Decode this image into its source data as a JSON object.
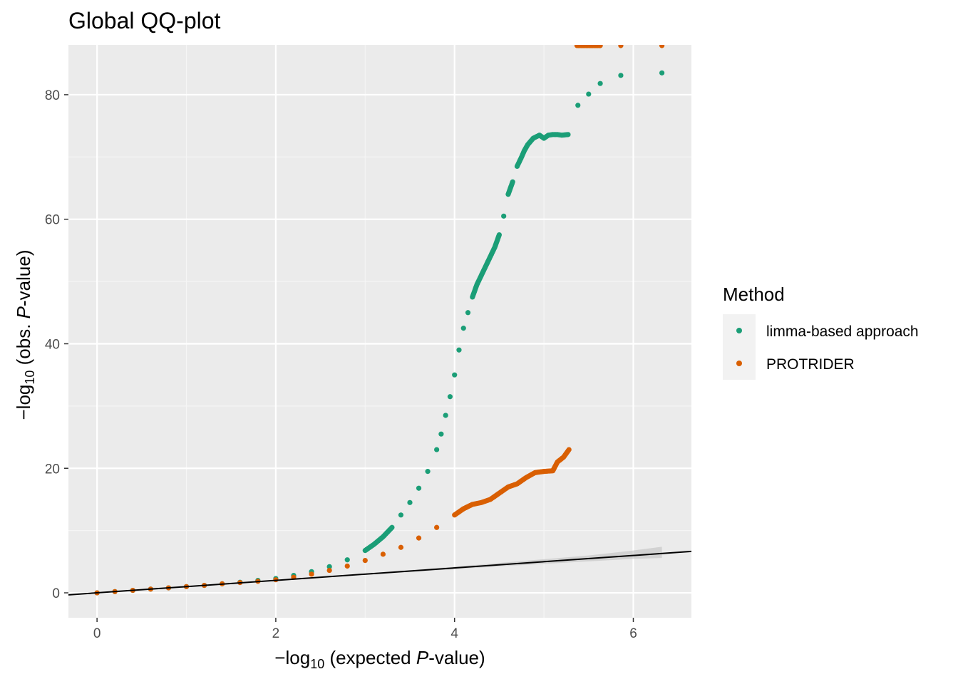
{
  "chart_data": {
    "type": "scatter",
    "title": "Global QQ-plot",
    "xlabel": {
      "prefix": "−log",
      "sub": "10",
      "mid": " (expected ",
      "italic": "P",
      "suffix": "-value)"
    },
    "ylabel": {
      "prefix": "−log",
      "sub": "10",
      "mid": " (obs. ",
      "italic": "P",
      "suffix": "-value)"
    },
    "xlim": [
      -0.32,
      6.65
    ],
    "ylim": [
      -4,
      88
    ],
    "x_ticks": [
      0,
      2,
      4,
      6
    ],
    "x_tick_labels": [
      "0",
      "2",
      "4",
      "6"
    ],
    "y_ticks": [
      0,
      20,
      40,
      60,
      80
    ],
    "y_tick_labels": [
      "0",
      "20",
      "40",
      "60",
      "80"
    ],
    "grid": true,
    "legend": {
      "title": "Method",
      "position": "right"
    },
    "reference_line": {
      "slope": 1,
      "intercept": 0,
      "color": "#000000"
    },
    "confidence_band": {
      "x": [
        3.0,
        3.5,
        4.0,
        4.5,
        5.0,
        5.5,
        6.0,
        6.32
      ],
      "lower": [
        2.9,
        3.35,
        3.8,
        4.25,
        4.65,
        5.05,
        5.45,
        5.6
      ],
      "upper": [
        3.1,
        3.65,
        4.2,
        4.8,
        5.4,
        6.0,
        6.8,
        7.4
      ]
    },
    "series": [
      {
        "name": "limma-based approach",
        "color": "#1b9e77",
        "x": [
          0,
          0.2,
          0.4,
          0.6,
          0.8,
          1.0,
          1.2,
          1.4,
          1.6,
          1.8,
          2.0,
          2.2,
          2.4,
          2.6,
          2.8,
          3.0,
          3.1,
          3.2,
          3.3,
          3.4,
          3.5,
          3.6,
          3.7,
          3.8,
          3.85,
          3.9,
          3.95,
          4.0,
          4.05,
          4.1,
          4.15,
          4.2,
          4.25,
          4.3,
          4.35,
          4.4,
          4.45,
          4.5,
          4.55,
          4.6,
          4.65,
          4.7,
          4.75,
          4.78,
          4.82,
          4.88,
          4.95,
          5.0,
          5.05,
          5.1,
          5.15,
          5.2,
          5.27,
          5.38,
          5.5,
          5.63,
          5.86,
          6.32
        ],
        "y": [
          0,
          0.2,
          0.4,
          0.6,
          0.8,
          1.0,
          1.2,
          1.45,
          1.7,
          2.0,
          2.3,
          2.8,
          3.4,
          4.2,
          5.3,
          6.8,
          7.8,
          9.0,
          10.5,
          12.5,
          14.5,
          16.8,
          19.5,
          23.0,
          25.5,
          28.5,
          31.5,
          35.0,
          39.0,
          42.5,
          45.0,
          47.5,
          49.5,
          51.0,
          52.5,
          54.0,
          55.5,
          57.5,
          60.5,
          64.0,
          66.0,
          68.5,
          70.0,
          71.0,
          72.0,
          73.0,
          73.5,
          73.0,
          73.5,
          73.6,
          73.6,
          73.5,
          73.6,
          78.3,
          80.1,
          81.8,
          83.1,
          83.5
        ]
      },
      {
        "name": "PROTRIDER",
        "color": "#d95f02",
        "x": [
          0,
          0.2,
          0.4,
          0.6,
          0.8,
          1.0,
          1.2,
          1.4,
          1.6,
          1.8,
          2.0,
          2.2,
          2.4,
          2.6,
          2.8,
          3.0,
          3.2,
          3.4,
          3.6,
          3.8,
          4.0,
          4.1,
          4.2,
          4.3,
          4.4,
          4.5,
          4.6,
          4.7,
          4.8,
          4.9,
          5.0,
          5.1,
          5.15,
          5.22,
          5.28,
          5.37,
          5.49,
          5.63,
          5.86,
          6.32
        ],
        "y": [
          0,
          0.2,
          0.4,
          0.6,
          0.8,
          1.0,
          1.2,
          1.45,
          1.65,
          1.85,
          2.1,
          2.5,
          3.0,
          3.6,
          4.3,
          5.2,
          6.2,
          7.3,
          8.8,
          10.5,
          12.5,
          13.5,
          14.2,
          14.5,
          15.0,
          16.0,
          17.0,
          17.5,
          18.5,
          19.3,
          19.5,
          19.6,
          21.0,
          21.8,
          23.0,
          88,
          88,
          88,
          88,
          88
        ]
      }
    ]
  }
}
